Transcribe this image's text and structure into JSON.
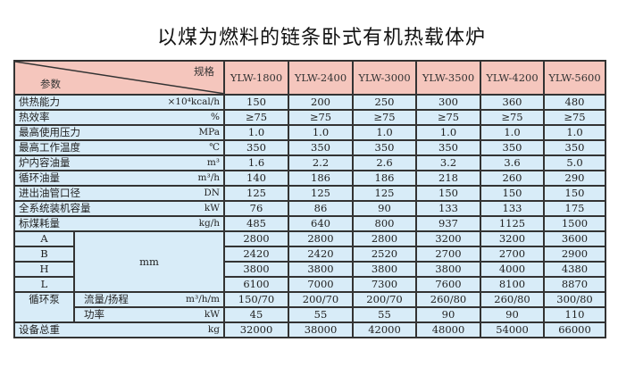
{
  "title": "以煤为燃料的链条卧式有机热载体炉",
  "header": {
    "spec": "规格",
    "param": "参数",
    "models": [
      "YLW-1800",
      "YLW-2400",
      "YLW-3000",
      "YLW-3500",
      "YLW-4200",
      "YLW-5600"
    ]
  },
  "rows": [
    {
      "label": "供热能力",
      "unit": "×10⁴kcal/h",
      "values": [
        "150",
        "200",
        "250",
        "300",
        "360",
        "480"
      ]
    },
    {
      "label": "热效率",
      "unit": "%",
      "values": [
        "≥75",
        "≥75",
        "≥75",
        "≥75",
        "≥75",
        "≥75"
      ]
    },
    {
      "label": "最高使用压力",
      "unit": "MPa",
      "values": [
        "1.0",
        "1.0",
        "1.0",
        "1.0",
        "1.0",
        "1.0"
      ]
    },
    {
      "label": "最高工作温度",
      "unit": "℃",
      "values": [
        "350",
        "350",
        "350",
        "350",
        "350",
        "350"
      ]
    },
    {
      "label": "炉内容油量",
      "unit": "m³",
      "values": [
        "1.6",
        "2.2",
        "2.6",
        "3.2",
        "3.6",
        "5.0"
      ]
    },
    {
      "label": "循环油量",
      "unit": "m³/h",
      "values": [
        "140",
        "186",
        "186",
        "218",
        "260",
        "290"
      ]
    },
    {
      "label": "进出油管口径",
      "unit": "DN",
      "values": [
        "125",
        "125",
        "125",
        "150",
        "150",
        "150"
      ]
    },
    {
      "label": "全系统装机容量",
      "unit": "kW",
      "values": [
        "76",
        "86",
        "90",
        "133",
        "133",
        "175"
      ]
    },
    {
      "label": "标煤耗量",
      "unit": "kg/h",
      "values": [
        "485",
        "640",
        "800",
        "937",
        "1125",
        "1500"
      ]
    }
  ],
  "dimensions": {
    "unit": "mm",
    "rows": [
      {
        "label": "A",
        "values": [
          "2800",
          "2800",
          "2800",
          "3200",
          "3200",
          "3600"
        ]
      },
      {
        "label": "B",
        "values": [
          "2420",
          "2420",
          "2520",
          "2700",
          "2700",
          "2900"
        ]
      },
      {
        "label": "H",
        "values": [
          "3800",
          "3800",
          "3800",
          "3800",
          "4000",
          "4380"
        ]
      },
      {
        "label": "L",
        "values": [
          "6100",
          "7000",
          "7300",
          "7600",
          "8100",
          "8870"
        ]
      }
    ]
  },
  "pump": {
    "label": "循环泵",
    "rows": [
      {
        "label": "流量/扬程",
        "unit": "m³/h/m",
        "values": [
          "150/70",
          "200/70",
          "200/70",
          "260/80",
          "260/80",
          "300/80"
        ]
      },
      {
        "label": "功率",
        "unit": "kW",
        "values": [
          "45",
          "55",
          "55",
          "90",
          "90",
          "110"
        ]
      }
    ]
  },
  "weight": {
    "label": "设备总重",
    "unit": "kg",
    "values": [
      "32000",
      "38000",
      "42000",
      "48000",
      "54000",
      "66000"
    ]
  }
}
